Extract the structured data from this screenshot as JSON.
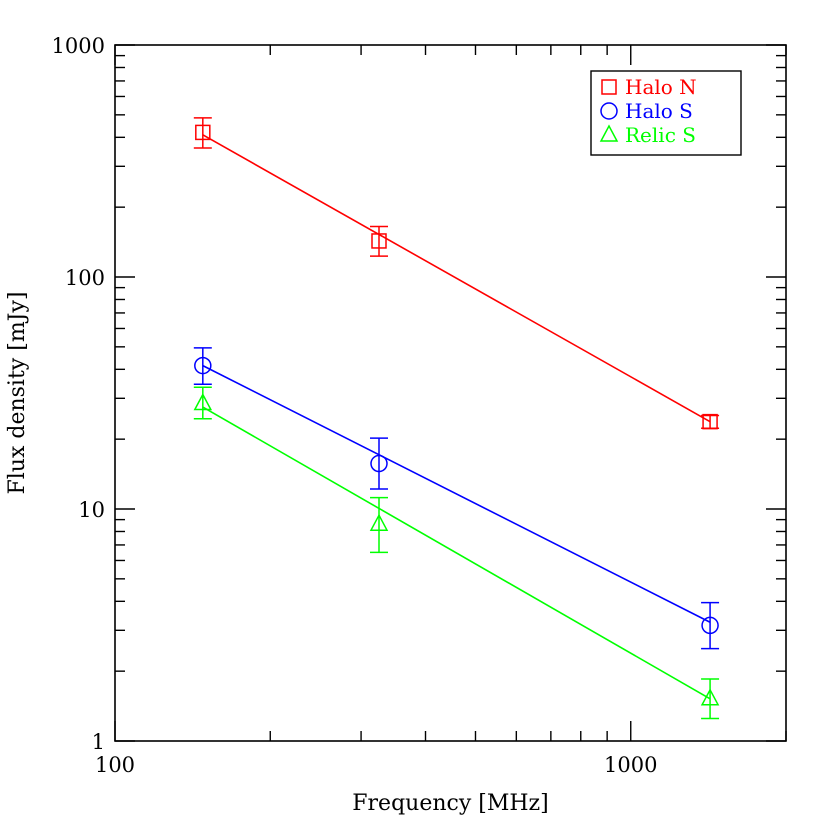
{
  "chart_data": {
    "type": "scatter",
    "xlabel": "Frequency [MHz]",
    "ylabel": "Flux density [mJy]",
    "xscale": "log",
    "yscale": "log",
    "xlim": [
      100,
      2000
    ],
    "ylim": [
      1,
      1000
    ],
    "x_tick_labels": [
      {
        "value": 100,
        "label": "100"
      },
      {
        "value": 1000,
        "label": "1000"
      }
    ],
    "y_tick_labels": [
      {
        "value": 1,
        "label": "1"
      },
      {
        "value": 10,
        "label": "10"
      },
      {
        "value": 100,
        "label": "100"
      },
      {
        "value": 1000,
        "label": "1000"
      }
    ],
    "grid": false,
    "legend_position": "top-right",
    "series": [
      {
        "name": "Halo N",
        "color": "#ff0000",
        "marker": "square",
        "points": [
          {
            "x": 148,
            "y": 420,
            "yerr_low": 360,
            "yerr_high": 485
          },
          {
            "x": 325,
            "y": 143,
            "yerr_low": 123,
            "yerr_high": 165
          },
          {
            "x": 1425,
            "y": 23.8,
            "yerr_low": 22.3,
            "yerr_high": 25.3
          }
        ],
        "fit": [
          {
            "x": 148,
            "y": 410
          },
          {
            "x": 1425,
            "y": 23.8
          }
        ]
      },
      {
        "name": "Halo S",
        "color": "#0000ff",
        "marker": "circle",
        "points": [
          {
            "x": 148,
            "y": 41.5,
            "yerr_low": 34.5,
            "yerr_high": 49.5
          },
          {
            "x": 325,
            "y": 15.7,
            "yerr_low": 12.2,
            "yerr_high": 20.2
          },
          {
            "x": 1425,
            "y": 3.15,
            "yerr_low": 2.5,
            "yerr_high": 3.95
          }
        ],
        "fit": [
          {
            "x": 148,
            "y": 41.5
          },
          {
            "x": 1425,
            "y": 3.25
          }
        ]
      },
      {
        "name": "Relic S",
        "color": "#00ff00",
        "marker": "triangle",
        "points": [
          {
            "x": 148,
            "y": 28.5,
            "yerr_low": 24.5,
            "yerr_high": 33.5
          },
          {
            "x": 325,
            "y": 8.6,
            "yerr_low": 6.5,
            "yerr_high": 11.2
          },
          {
            "x": 1425,
            "y": 1.52,
            "yerr_low": 1.25,
            "yerr_high": 1.85
          }
        ],
        "fit": [
          {
            "x": 148,
            "y": 27.5
          },
          {
            "x": 1425,
            "y": 1.52
          }
        ]
      }
    ]
  }
}
